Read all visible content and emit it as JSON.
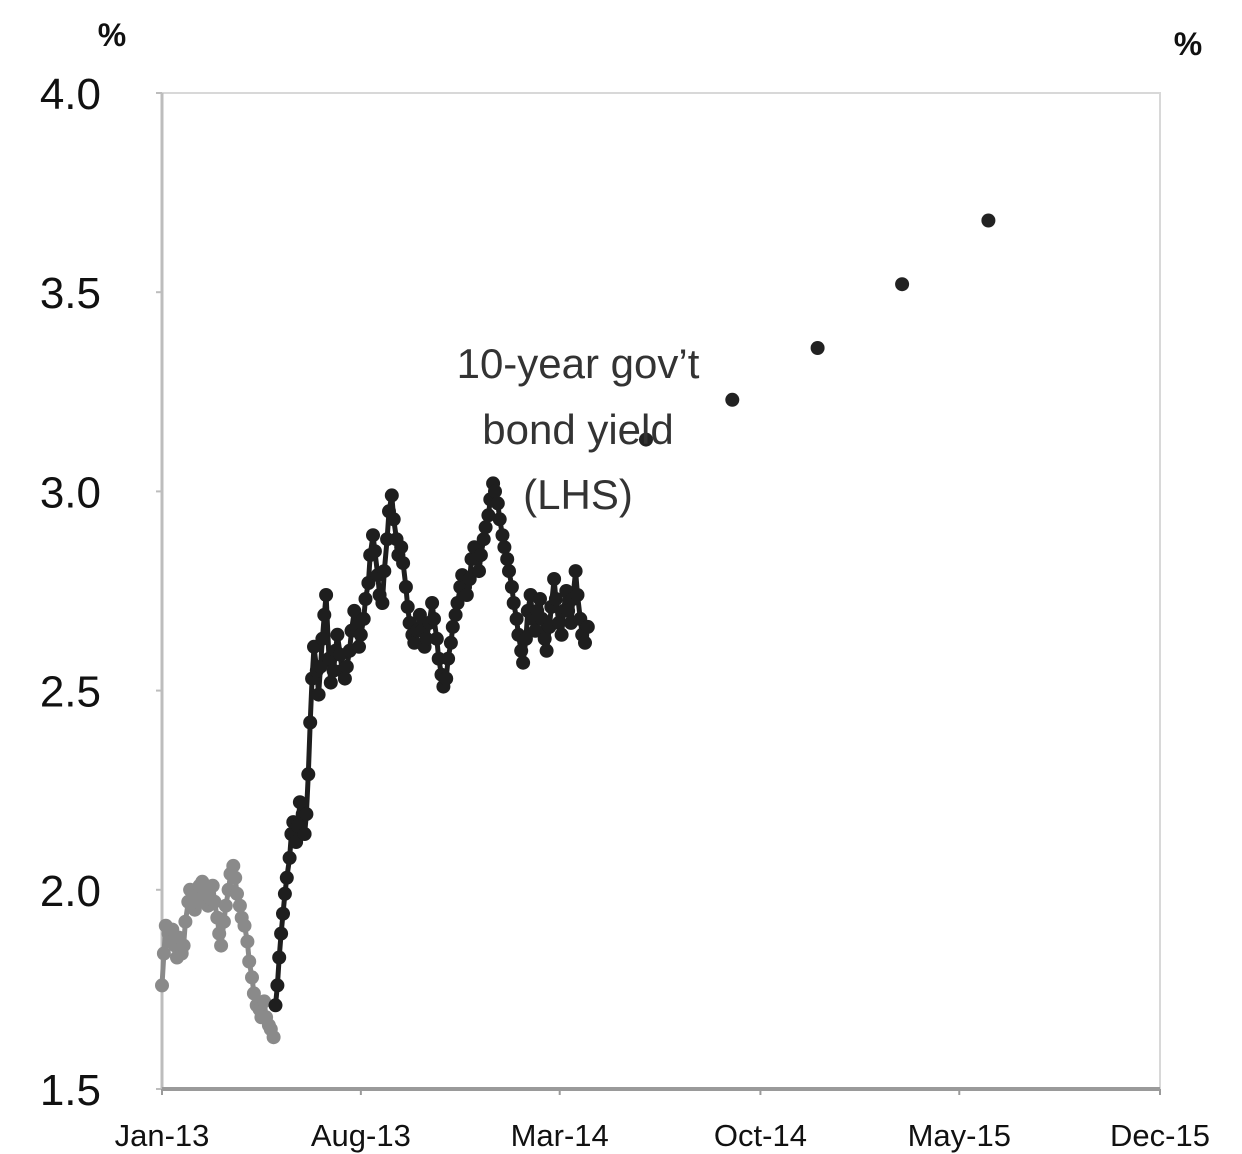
{
  "chart_data": {
    "type": "line",
    "title": "",
    "xlabel": "",
    "ylabel": "",
    "y_unit_left": "%",
    "y_unit_right": "%",
    "ylim": [
      1.5,
      4.0
    ],
    "y_ticks": [
      "4.0",
      "3.5",
      "3.0",
      "2.5",
      "2.0",
      "1.5"
    ],
    "x_ticks": [
      "Jan-13",
      "Aug-13",
      "Mar-14",
      "Oct-14",
      "May-15",
      "Dec-15"
    ],
    "x_tick_dates": [
      "2013-01",
      "2013-08",
      "2014-03",
      "2014-10",
      "2015-05",
      "2015-12"
    ],
    "grid": false,
    "annotation": [
      "10-year gov’t",
      "bond yield",
      "(LHS)"
    ],
    "series": [
      {
        "name": "",
        "style": "light-grey-dotted-line",
        "color": "#8a8a8a",
        "points": [
          [
            "2013-01-01",
            1.76
          ],
          [
            "2013-01-03",
            1.84
          ],
          [
            "2013-01-05",
            1.91
          ],
          [
            "2013-01-08",
            1.89
          ],
          [
            "2013-01-10",
            1.87
          ],
          [
            "2013-01-12",
            1.9
          ],
          [
            "2013-01-15",
            1.86
          ],
          [
            "2013-01-17",
            1.83
          ],
          [
            "2013-01-19",
            1.88
          ],
          [
            "2013-01-22",
            1.84
          ],
          [
            "2013-01-24",
            1.86
          ],
          [
            "2013-01-26",
            1.92
          ],
          [
            "2013-01-29",
            1.97
          ],
          [
            "2013-01-31",
            2.0
          ],
          [
            "2013-02-03",
            1.98
          ],
          [
            "2013-02-05",
            1.95
          ],
          [
            "2013-02-08",
            1.97
          ],
          [
            "2013-02-10",
            2.01
          ],
          [
            "2013-02-13",
            2.02
          ],
          [
            "2013-02-16",
            1.99
          ],
          [
            "2013-02-19",
            1.96
          ],
          [
            "2013-02-21",
            1.98
          ],
          [
            "2013-02-24",
            2.01
          ],
          [
            "2013-02-26",
            1.97
          ],
          [
            "2013-03-01",
            1.93
          ],
          [
            "2013-03-03",
            1.89
          ],
          [
            "2013-03-05",
            1.86
          ],
          [
            "2013-03-08",
            1.92
          ],
          [
            "2013-03-10",
            1.96
          ],
          [
            "2013-03-13",
            2.0
          ],
          [
            "2013-03-15",
            2.04
          ],
          [
            "2013-03-18",
            2.06
          ],
          [
            "2013-03-20",
            2.03
          ],
          [
            "2013-03-22",
            1.99
          ],
          [
            "2013-03-25",
            1.96
          ],
          [
            "2013-03-27",
            1.93
          ],
          [
            "2013-03-30",
            1.91
          ],
          [
            "2013-04-02",
            1.87
          ],
          [
            "2013-04-04",
            1.82
          ],
          [
            "2013-04-07",
            1.78
          ],
          [
            "2013-04-09",
            1.74
          ],
          [
            "2013-04-12",
            1.71
          ],
          [
            "2013-04-15",
            1.7
          ],
          [
            "2013-04-17",
            1.68
          ],
          [
            "2013-04-20",
            1.72
          ],
          [
            "2013-04-22",
            1.68
          ],
          [
            "2013-04-25",
            1.66
          ],
          [
            "2013-04-27",
            1.65
          ],
          [
            "2013-04-30",
            1.63
          ]
        ]
      },
      {
        "name": "",
        "style": "dark-dotted-line",
        "color": "#1e1e1e",
        "points": [
          [
            "2013-05-02",
            1.71
          ],
          [
            "2013-05-04",
            1.76
          ],
          [
            "2013-05-06",
            1.83
          ],
          [
            "2013-05-08",
            1.89
          ],
          [
            "2013-05-10",
            1.94
          ],
          [
            "2013-05-12",
            1.99
          ],
          [
            "2013-05-14",
            2.03
          ],
          [
            "2013-05-17",
            2.08
          ],
          [
            "2013-05-19",
            2.14
          ],
          [
            "2013-05-21",
            2.17
          ],
          [
            "2013-05-24",
            2.12
          ],
          [
            "2013-05-26",
            2.16
          ],
          [
            "2013-05-28",
            2.22
          ],
          [
            "2013-05-31",
            2.19
          ],
          [
            "2013-06-02",
            2.14
          ],
          [
            "2013-06-04",
            2.19
          ],
          [
            "2013-06-06",
            2.29
          ],
          [
            "2013-06-08",
            2.42
          ],
          [
            "2013-06-10",
            2.53
          ],
          [
            "2013-06-12",
            2.61
          ],
          [
            "2013-06-15",
            2.55
          ],
          [
            "2013-06-17",
            2.49
          ],
          [
            "2013-06-19",
            2.56
          ],
          [
            "2013-06-21",
            2.63
          ],
          [
            "2013-06-23",
            2.69
          ],
          [
            "2013-06-25",
            2.74
          ],
          [
            "2013-06-28",
            2.58
          ],
          [
            "2013-06-30",
            2.52
          ],
          [
            "2013-07-03",
            2.55
          ],
          [
            "2013-07-05",
            2.6
          ],
          [
            "2013-07-07",
            2.64
          ],
          [
            "2013-07-10",
            2.59
          ],
          [
            "2013-07-12",
            2.55
          ],
          [
            "2013-07-15",
            2.53
          ],
          [
            "2013-07-17",
            2.56
          ],
          [
            "2013-07-20",
            2.6
          ],
          [
            "2013-07-22",
            2.65
          ],
          [
            "2013-07-25",
            2.7
          ],
          [
            "2013-07-27",
            2.66
          ],
          [
            "2013-07-30",
            2.61
          ],
          [
            "2013-08-01",
            2.64
          ],
          [
            "2013-08-04",
            2.68
          ],
          [
            "2013-08-06",
            2.73
          ],
          [
            "2013-08-09",
            2.77
          ],
          [
            "2013-08-11",
            2.84
          ],
          [
            "2013-08-14",
            2.89
          ],
          [
            "2013-08-16",
            2.85
          ],
          [
            "2013-08-19",
            2.79
          ],
          [
            "2013-08-21",
            2.74
          ],
          [
            "2013-08-24",
            2.72
          ],
          [
            "2013-08-26",
            2.8
          ],
          [
            "2013-08-29",
            2.88
          ],
          [
            "2013-08-31",
            2.95
          ],
          [
            "2013-09-03",
            2.99
          ],
          [
            "2013-09-05",
            2.93
          ],
          [
            "2013-09-08",
            2.88
          ],
          [
            "2013-09-10",
            2.84
          ],
          [
            "2013-09-13",
            2.86
          ],
          [
            "2013-09-15",
            2.82
          ],
          [
            "2013-09-18",
            2.76
          ],
          [
            "2013-09-20",
            2.71
          ],
          [
            "2013-09-22",
            2.67
          ],
          [
            "2013-09-25",
            2.64
          ],
          [
            "2013-09-27",
            2.62
          ],
          [
            "2013-09-30",
            2.65
          ],
          [
            "2013-10-03",
            2.69
          ],
          [
            "2013-10-05",
            2.65
          ],
          [
            "2013-10-08",
            2.61
          ],
          [
            "2013-10-10",
            2.63
          ],
          [
            "2013-10-13",
            2.67
          ],
          [
            "2013-10-16",
            2.72
          ],
          [
            "2013-10-18",
            2.68
          ],
          [
            "2013-10-21",
            2.63
          ],
          [
            "2013-10-23",
            2.58
          ],
          [
            "2013-10-26",
            2.54
          ],
          [
            "2013-10-28",
            2.51
          ],
          [
            "2013-10-31",
            2.53
          ],
          [
            "2013-11-02",
            2.58
          ],
          [
            "2013-11-05",
            2.62
          ],
          [
            "2013-11-07",
            2.66
          ],
          [
            "2013-11-10",
            2.69
          ],
          [
            "2013-11-12",
            2.72
          ],
          [
            "2013-11-15",
            2.76
          ],
          [
            "2013-11-17",
            2.79
          ],
          [
            "2013-11-20",
            2.76
          ],
          [
            "2013-11-22",
            2.74
          ],
          [
            "2013-11-25",
            2.78
          ],
          [
            "2013-11-27",
            2.83
          ],
          [
            "2013-11-30",
            2.86
          ],
          [
            "2013-12-02",
            2.83
          ],
          [
            "2013-12-05",
            2.8
          ],
          [
            "2013-12-07",
            2.84
          ],
          [
            "2013-12-10",
            2.88
          ],
          [
            "2013-12-12",
            2.91
          ],
          [
            "2013-12-15",
            2.94
          ],
          [
            "2013-12-17",
            2.98
          ],
          [
            "2013-12-20",
            3.02
          ],
          [
            "2013-12-22",
            3.0
          ],
          [
            "2013-12-25",
            2.97
          ],
          [
            "2013-12-27",
            2.93
          ],
          [
            "2013-12-30",
            2.89
          ],
          [
            "2014-01-01",
            2.86
          ],
          [
            "2014-01-04",
            2.83
          ],
          [
            "2014-01-06",
            2.8
          ],
          [
            "2014-01-09",
            2.76
          ],
          [
            "2014-01-11",
            2.72
          ],
          [
            "2014-01-14",
            2.68
          ],
          [
            "2014-01-16",
            2.64
          ],
          [
            "2014-01-19",
            2.6
          ],
          [
            "2014-01-21",
            2.57
          ],
          [
            "2014-01-24",
            2.63
          ],
          [
            "2014-01-26",
            2.7
          ],
          [
            "2014-01-29",
            2.74
          ],
          [
            "2014-01-31",
            2.68
          ],
          [
            "2014-02-03",
            2.65
          ],
          [
            "2014-02-05",
            2.7
          ],
          [
            "2014-02-08",
            2.73
          ],
          [
            "2014-02-10",
            2.68
          ],
          [
            "2014-02-13",
            2.63
          ],
          [
            "2014-02-15",
            2.6
          ],
          [
            "2014-02-18",
            2.66
          ],
          [
            "2014-02-20",
            2.71
          ],
          [
            "2014-02-23",
            2.78
          ],
          [
            "2014-02-25",
            2.73
          ],
          [
            "2014-02-28",
            2.67
          ],
          [
            "2014-03-03",
            2.64
          ],
          [
            "2014-03-05",
            2.7
          ],
          [
            "2014-03-08",
            2.75
          ],
          [
            "2014-03-10",
            2.7
          ],
          [
            "2014-03-13",
            2.67
          ],
          [
            "2014-03-15",
            2.73
          ],
          [
            "2014-03-18",
            2.8
          ],
          [
            "2014-03-20",
            2.74
          ],
          [
            "2014-03-23",
            2.68
          ],
          [
            "2014-03-25",
            2.64
          ],
          [
            "2014-03-28",
            2.62
          ],
          [
            "2014-03-31",
            2.66
          ]
        ]
      },
      {
        "name": "",
        "style": "markers",
        "color": "#222222",
        "points": [
          [
            "2014-06-01",
            3.13
          ],
          [
            "2014-09-01",
            3.23
          ],
          [
            "2014-12-01",
            3.36
          ],
          [
            "2015-03-01",
            3.52
          ],
          [
            "2015-06-01",
            3.68
          ]
        ]
      }
    ]
  }
}
